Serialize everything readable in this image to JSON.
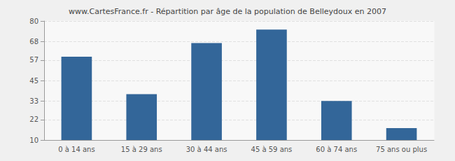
{
  "chart_data": {
    "type": "bar",
    "title": "www.CartesFrance.fr - Répartition par âge de la population de Belleydoux en 2007",
    "categories": [
      "0 à 14 ans",
      "15 à 29 ans",
      "30 à 44 ans",
      "45 à 59 ans",
      "60 à 74 ans",
      "75 ans ou plus"
    ],
    "values": [
      59,
      37,
      67,
      75,
      33,
      17
    ],
    "color": "#336699",
    "ylim": [
      10,
      80
    ],
    "yticks": [
      10,
      22,
      33,
      45,
      57,
      68,
      80
    ],
    "grid": true
  }
}
